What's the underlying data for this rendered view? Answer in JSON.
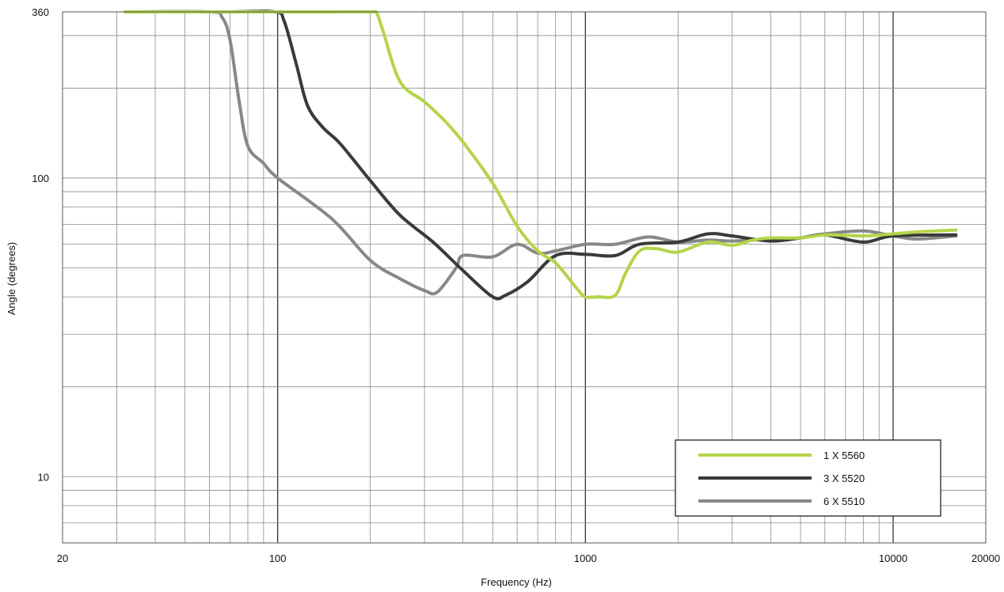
{
  "chart_data": {
    "type": "line",
    "title": "",
    "xlabel": "Frequency (Hz)",
    "ylabel": "Angle (degrees)",
    "xscale": "log",
    "yscale": "log",
    "xlim": [
      20,
      20000
    ],
    "ylim": [
      6,
      360
    ],
    "x_ticks": [
      20,
      100,
      1000,
      10000,
      20000
    ],
    "x_tick_labels": [
      "20",
      "100",
      "1000",
      "10000",
      "20000"
    ],
    "y_ticks": [
      10,
      100,
      360
    ],
    "y_tick_labels": [
      "10",
      "100",
      "360"
    ],
    "grid": true,
    "legend_position": "bottom-right",
    "series": [
      {
        "name": "1 X 5560",
        "color": "#b5d44a",
        "points": [
          [
            32,
            360
          ],
          [
            100,
            360
          ],
          [
            150,
            360
          ],
          [
            200,
            360
          ],
          [
            210,
            356
          ],
          [
            220,
            310
          ],
          [
            250,
            210
          ],
          [
            300,
            180
          ],
          [
            350,
            155
          ],
          [
            400,
            132
          ],
          [
            500,
            96
          ],
          [
            600,
            69
          ],
          [
            700,
            57
          ],
          [
            800,
            52
          ],
          [
            900,
            45
          ],
          [
            950,
            42
          ],
          [
            1000,
            40
          ],
          [
            1100,
            40
          ],
          [
            1250,
            40.5
          ],
          [
            1350,
            48
          ],
          [
            1500,
            57
          ],
          [
            1700,
            58
          ],
          [
            2000,
            56.5
          ],
          [
            2500,
            61
          ],
          [
            3000,
            59.5
          ],
          [
            3500,
            62
          ],
          [
            4000,
            63
          ],
          [
            5000,
            63
          ],
          [
            6000,
            64.5
          ],
          [
            8000,
            64
          ],
          [
            10000,
            65
          ],
          [
            12000,
            66
          ],
          [
            16000,
            67
          ]
        ]
      },
      {
        "name": "3 X 5520",
        "color": "#3a3a3a",
        "points": [
          [
            32,
            360
          ],
          [
            70,
            360
          ],
          [
            98,
            360
          ],
          [
            105,
            335
          ],
          [
            115,
            240
          ],
          [
            125,
            175
          ],
          [
            140,
            148
          ],
          [
            160,
            130
          ],
          [
            200,
            98
          ],
          [
            250,
            75
          ],
          [
            320,
            61
          ],
          [
            400,
            49
          ],
          [
            500,
            40
          ],
          [
            550,
            40.5
          ],
          [
            650,
            45
          ],
          [
            800,
            55
          ],
          [
            1000,
            55.5
          ],
          [
            1250,
            55
          ],
          [
            1500,
            60
          ],
          [
            2000,
            61
          ],
          [
            2500,
            65
          ],
          [
            3000,
            64
          ],
          [
            4000,
            61.5
          ],
          [
            5000,
            63
          ],
          [
            6000,
            64.5
          ],
          [
            8000,
            61
          ],
          [
            10000,
            64
          ],
          [
            16000,
            64.5
          ]
        ]
      },
      {
        "name": "6 X 5510",
        "color": "#888888",
        "points": [
          [
            32,
            360
          ],
          [
            60,
            360
          ],
          [
            66,
            345
          ],
          [
            70,
            290
          ],
          [
            75,
            180
          ],
          [
            80,
            128
          ],
          [
            90,
            112
          ],
          [
            100,
            100
          ],
          [
            150,
            73
          ],
          [
            200,
            53
          ],
          [
            250,
            46
          ],
          [
            300,
            42
          ],
          [
            330,
            41.5
          ],
          [
            380,
            50
          ],
          [
            400,
            55
          ],
          [
            500,
            54.5
          ],
          [
            600,
            60
          ],
          [
            700,
            56
          ],
          [
            800,
            57
          ],
          [
            1000,
            60
          ],
          [
            1250,
            60
          ],
          [
            1600,
            63.5
          ],
          [
            2000,
            61
          ],
          [
            2500,
            62
          ],
          [
            3000,
            61.5
          ],
          [
            4000,
            62.5
          ],
          [
            5000,
            63
          ],
          [
            6000,
            65
          ],
          [
            8000,
            66.5
          ],
          [
            10000,
            64
          ],
          [
            12000,
            62.5
          ],
          [
            16000,
            64
          ]
        ]
      }
    ]
  }
}
